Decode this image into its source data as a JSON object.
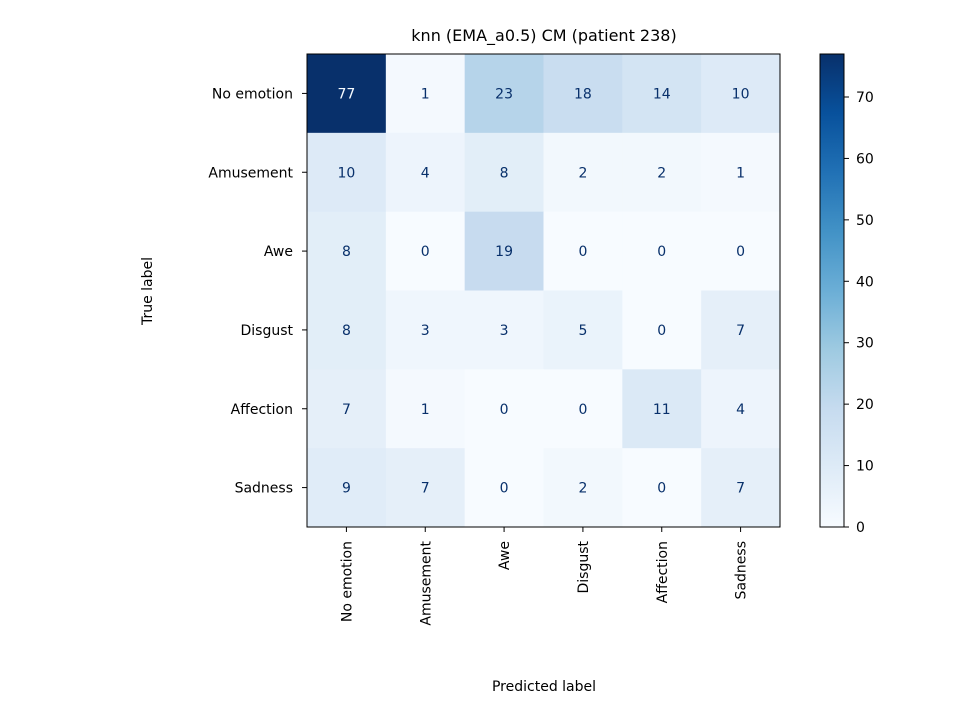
{
  "chart_data": {
    "type": "heatmap",
    "title": "knn (EMA_a0.5) CM (patient 238)",
    "xlabel": "Predicted label",
    "ylabel": "True label",
    "x_categories": [
      "No emotion",
      "Amusement",
      "Awe",
      "Disgust",
      "Affection",
      "Sadness"
    ],
    "y_categories": [
      "No emotion",
      "Amusement",
      "Awe",
      "Disgust",
      "Affection",
      "Sadness"
    ],
    "values": [
      [
        77,
        1,
        23,
        18,
        14,
        10
      ],
      [
        10,
        4,
        8,
        2,
        2,
        1
      ],
      [
        8,
        0,
        19,
        0,
        0,
        0
      ],
      [
        8,
        3,
        3,
        5,
        0,
        7
      ],
      [
        7,
        1,
        0,
        0,
        11,
        4
      ],
      [
        9,
        7,
        0,
        2,
        0,
        7
      ]
    ],
    "colormap": "Blues",
    "vmin": 0,
    "vmax": 77,
    "colorbar_ticks": [
      0,
      10,
      20,
      30,
      40,
      50,
      60,
      70
    ],
    "grid": false
  }
}
